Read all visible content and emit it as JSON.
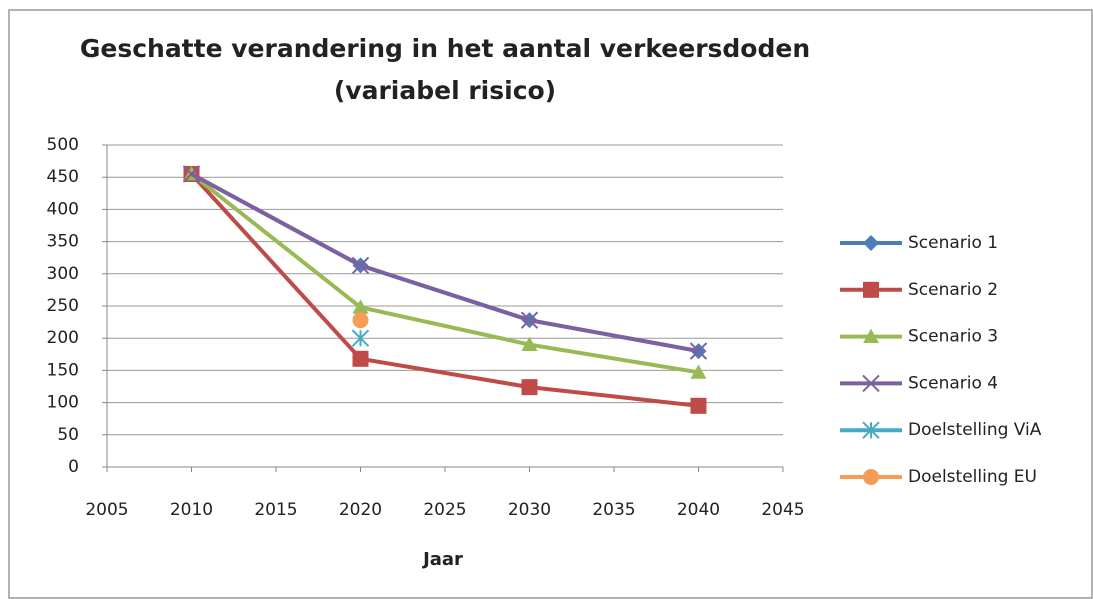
{
  "chart_data": {
    "type": "line",
    "title": [
      "Geschatte verandering in het aantal verkeersdoden",
      "(variabel risico)"
    ],
    "xlabel": "Jaar",
    "xlim": [
      2005,
      2045
    ],
    "xticks": [
      2005,
      2010,
      2015,
      2020,
      2025,
      2030,
      2035,
      2040,
      2045
    ],
    "ylim": [
      0,
      500
    ],
    "yticks": [
      0,
      50,
      100,
      150,
      200,
      250,
      300,
      350,
      400,
      450,
      500
    ],
    "grid": true,
    "legend": "right",
    "series": [
      {
        "name": "Scenario 1",
        "color": "#4a7ebb",
        "marker": "diamond",
        "x": [
          2010,
          2020,
          2030,
          2040
        ],
        "values": [
          455,
          313,
          228,
          180
        ]
      },
      {
        "name": "Scenario 2",
        "color": "#be4b48",
        "marker": "square",
        "x": [
          2010,
          2020,
          2030,
          2040
        ],
        "values": [
          455,
          168,
          124,
          95
        ]
      },
      {
        "name": "Scenario 3",
        "color": "#98b954",
        "marker": "triangle",
        "x": [
          2010,
          2020,
          2030,
          2040
        ],
        "values": [
          455,
          248,
          190,
          147
        ]
      },
      {
        "name": "Scenario 4",
        "color": "#7d60a0",
        "marker": "x",
        "x": [
          2010,
          2020,
          2030,
          2040
        ],
        "values": [
          455,
          313,
          228,
          180
        ]
      },
      {
        "name": "Doelstelling ViA",
        "color": "#46aac5",
        "marker": "star",
        "x": [
          2020
        ],
        "values": [
          200
        ]
      },
      {
        "name": "Doelstelling EU",
        "color": "#f59d56",
        "marker": "circle",
        "x": [
          2020
        ],
        "values": [
          228
        ]
      }
    ]
  }
}
